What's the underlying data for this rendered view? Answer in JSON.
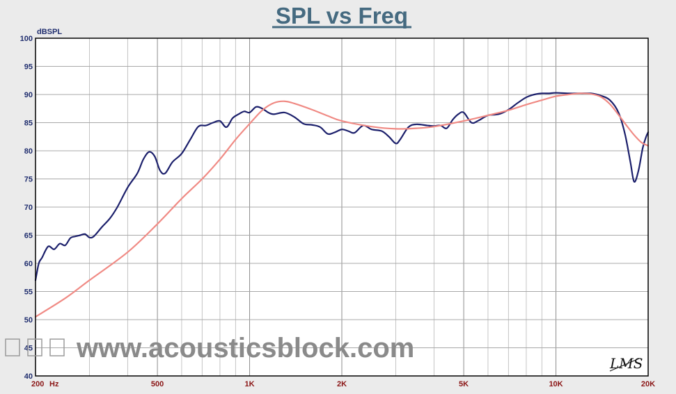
{
  "chart_data": {
    "type": "line",
    "title": "SPL vs Freq",
    "ylabel": "dBSPL",
    "xunit": "Hz",
    "x_scale": "log",
    "xlim": [
      200,
      20000
    ],
    "ylim": [
      40,
      100
    ],
    "yticks": [
      40,
      45,
      50,
      55,
      60,
      65,
      70,
      75,
      80,
      85,
      90,
      95,
      100
    ],
    "xticks": [
      {
        "value": 200,
        "label": "200"
      },
      {
        "value": 500,
        "label": "500"
      },
      {
        "value": 1000,
        "label": "1K"
      },
      {
        "value": 2000,
        "label": "2K"
      },
      {
        "value": 5000,
        "label": "5K"
      },
      {
        "value": 10000,
        "label": "10K"
      },
      {
        "value": 20000,
        "label": "20K"
      }
    ],
    "grid": true,
    "series": [
      {
        "color": "#1b1f6b",
        "points": [
          [
            200,
            57
          ],
          [
            205,
            60
          ],
          [
            210,
            61
          ],
          [
            220,
            63
          ],
          [
            230,
            62.5
          ],
          [
            240,
            63.5
          ],
          [
            250,
            63.2
          ],
          [
            260,
            64.5
          ],
          [
            270,
            64.8
          ],
          [
            280,
            65
          ],
          [
            290,
            65.2
          ],
          [
            300,
            64.6
          ],
          [
            310,
            64.8
          ],
          [
            330,
            66.5
          ],
          [
            350,
            68
          ],
          [
            370,
            70
          ],
          [
            400,
            73.5
          ],
          [
            430,
            76
          ],
          [
            450,
            78.5
          ],
          [
            470,
            79.8
          ],
          [
            490,
            79
          ],
          [
            510,
            76.5
          ],
          [
            530,
            76
          ],
          [
            560,
            78
          ],
          [
            600,
            79.5
          ],
          [
            640,
            82
          ],
          [
            680,
            84.3
          ],
          [
            720,
            84.5
          ],
          [
            760,
            85
          ],
          [
            800,
            85.3
          ],
          [
            840,
            84.2
          ],
          [
            880,
            85.8
          ],
          [
            920,
            86.5
          ],
          [
            960,
            87
          ],
          [
            1000,
            86.8
          ],
          [
            1050,
            87.8
          ],
          [
            1100,
            87.5
          ],
          [
            1150,
            86.8
          ],
          [
            1200,
            86.5
          ],
          [
            1300,
            86.8
          ],
          [
            1400,
            86
          ],
          [
            1500,
            84.8
          ],
          [
            1600,
            84.6
          ],
          [
            1700,
            84.2
          ],
          [
            1800,
            83
          ],
          [
            1900,
            83.3
          ],
          [
            2000,
            83.8
          ],
          [
            2100,
            83.5
          ],
          [
            2200,
            83.2
          ],
          [
            2350,
            84.5
          ],
          [
            2500,
            83.8
          ],
          [
            2700,
            83.5
          ],
          [
            2850,
            82.5
          ],
          [
            3000,
            81.3
          ],
          [
            3100,
            82
          ],
          [
            3300,
            84.2
          ],
          [
            3500,
            84.7
          ],
          [
            3800,
            84.5
          ],
          [
            4000,
            84.4
          ],
          [
            4200,
            84.5
          ],
          [
            4400,
            84
          ],
          [
            4600,
            85.5
          ],
          [
            4800,
            86.5
          ],
          [
            5000,
            86.8
          ],
          [
            5300,
            85
          ],
          [
            5600,
            85.4
          ],
          [
            6000,
            86.3
          ],
          [
            6500,
            86.5
          ],
          [
            7000,
            87.3
          ],
          [
            7500,
            88.5
          ],
          [
            8000,
            89.5
          ],
          [
            8500,
            90
          ],
          [
            9000,
            90.2
          ],
          [
            9500,
            90.2
          ],
          [
            10000,
            90.3
          ],
          [
            11000,
            90.2
          ],
          [
            12000,
            90.2
          ],
          [
            13000,
            90.2
          ],
          [
            14000,
            89.8
          ],
          [
            15000,
            89
          ],
          [
            16000,
            86.8
          ],
          [
            16800,
            83
          ],
          [
            17500,
            78
          ],
          [
            18000,
            74.5
          ],
          [
            18600,
            76.5
          ],
          [
            19200,
            80.5
          ],
          [
            19700,
            82.5
          ],
          [
            20000,
            83.3
          ]
        ]
      },
      {
        "color": "#f08a84",
        "points": [
          [
            200,
            50.5
          ],
          [
            250,
            53.8
          ],
          [
            300,
            57
          ],
          [
            400,
            62
          ],
          [
            500,
            67
          ],
          [
            600,
            71.5
          ],
          [
            700,
            75
          ],
          [
            800,
            78.5
          ],
          [
            900,
            82
          ],
          [
            1000,
            84.8
          ],
          [
            1100,
            87.2
          ],
          [
            1200,
            88.5
          ],
          [
            1300,
            88.8
          ],
          [
            1400,
            88.4
          ],
          [
            1600,
            87.3
          ],
          [
            1800,
            86.2
          ],
          [
            2000,
            85.3
          ],
          [
            2500,
            84.3
          ],
          [
            3000,
            83.9
          ],
          [
            3500,
            84
          ],
          [
            4000,
            84.3
          ],
          [
            5000,
            85.3
          ],
          [
            6000,
            86.3
          ],
          [
            7000,
            87.2
          ],
          [
            8000,
            88.2
          ],
          [
            9000,
            89
          ],
          [
            10000,
            89.7
          ],
          [
            11000,
            90
          ],
          [
            12000,
            90.2
          ],
          [
            13000,
            90.1
          ],
          [
            14000,
            89.6
          ],
          [
            15000,
            88.3
          ],
          [
            16000,
            86.4
          ],
          [
            17000,
            84.5
          ],
          [
            18000,
            82.8
          ],
          [
            19000,
            81.5
          ],
          [
            20000,
            80.9
          ]
        ]
      }
    ]
  },
  "watermark": "www.acousticsblock.com",
  "logo": "LMS"
}
